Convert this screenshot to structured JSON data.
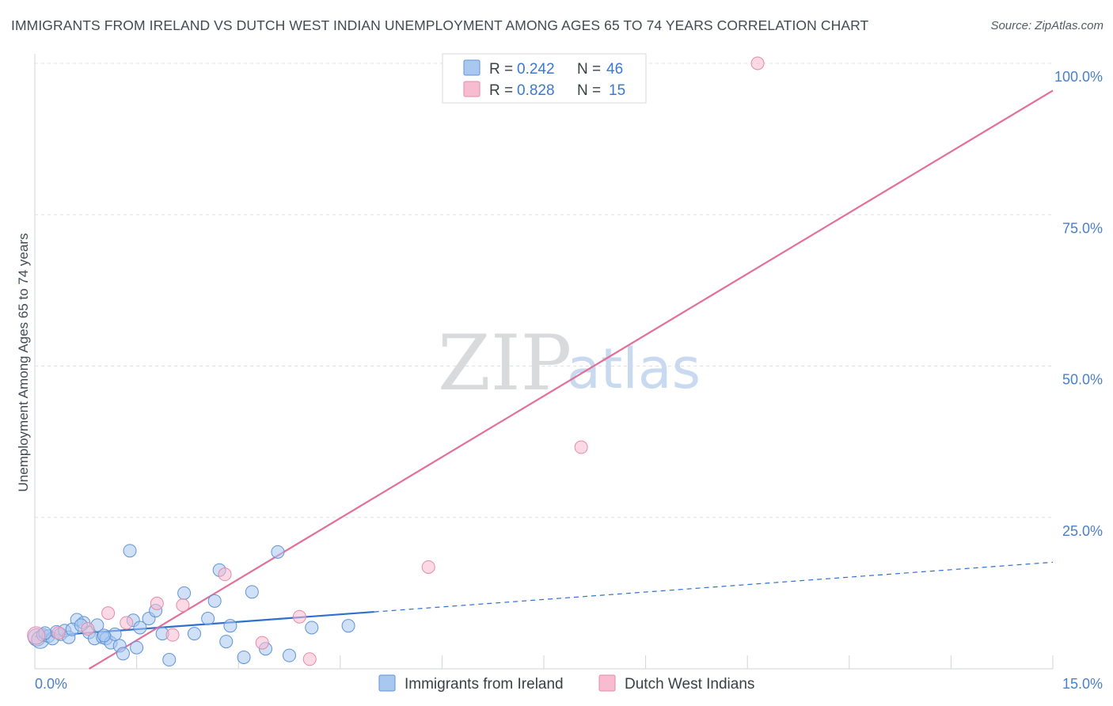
{
  "header": {
    "title": "IMMIGRANTS FROM IRELAND VS DUTCH WEST INDIAN UNEMPLOYMENT AMONG AGES 65 TO 74 YEARS CORRELATION CHART",
    "source": "Source: ZipAtlas.com"
  },
  "watermark": {
    "zip": "ZIP",
    "atlas": "atlas"
  },
  "legend": {
    "r_label": "R =",
    "n_label": "N =",
    "items": [
      {
        "r": "0.242",
        "n": "46",
        "color": "#a9c8f0",
        "stroke": "#5f93d6"
      },
      {
        "r": "0.828",
        "n": "15",
        "color": "#f7bcd0",
        "stroke": "#e48aa9"
      }
    ]
  },
  "bottom_legend": [
    {
      "label": "Immigrants from Ireland",
      "color": "#a9c8f0",
      "stroke": "#5f93d6"
    },
    {
      "label": "Dutch West Indians",
      "color": "#f7bcd0",
      "stroke": "#e48aa9"
    }
  ],
  "chart_data": {
    "type": "scatter",
    "title": "IMMIGRANTS FROM IRELAND VS DUTCH WEST INDIAN UNEMPLOYMENT AMONG AGES 65 TO 74 YEARS CORRELATION CHART",
    "xlabel": "",
    "ylabel": "Unemployment Among Ages 65 to 74 years",
    "xlim": [
      0,
      15
    ],
    "ylim": [
      0,
      100
    ],
    "x_tick_labels": [
      {
        "value": 0,
        "label": "0.0%"
      },
      {
        "value": 15,
        "label": "15.0%"
      }
    ],
    "y_tick_labels": [
      {
        "value": 25,
        "label": "25.0%"
      },
      {
        "value": 50,
        "label": "50.0%"
      },
      {
        "value": 75,
        "label": "75.0%"
      },
      {
        "value": 100,
        "label": "100.0%"
      }
    ],
    "series": [
      {
        "name": "Immigrants from Ireland",
        "color": "#a9c8f0",
        "stroke": "#5f93d6",
        "line_color": "#2f6fcf",
        "trend": {
          "x0": 0,
          "y0": 5.3,
          "x1": 15,
          "y1": 17.6,
          "solid_until_x": 5.0
        },
        "points": [
          [
            0.03,
            5.2
          ],
          [
            0.08,
            4.8
          ],
          [
            0.12,
            5.6
          ],
          [
            0.2,
            5.4
          ],
          [
            0.26,
            5.0
          ],
          [
            0.32,
            6.1
          ],
          [
            0.38,
            5.7
          ],
          [
            0.44,
            6.3
          ],
          [
            0.5,
            5.2
          ],
          [
            0.62,
            8.1
          ],
          [
            0.72,
            7.6
          ],
          [
            0.8,
            6.0
          ],
          [
            0.88,
            5.0
          ],
          [
            0.92,
            7.2
          ],
          [
            1.0,
            5.2
          ],
          [
            1.05,
            5.0
          ],
          [
            1.12,
            4.3
          ],
          [
            1.18,
            5.7
          ],
          [
            1.25,
            3.8
          ],
          [
            1.3,
            2.5
          ],
          [
            1.4,
            19.5
          ],
          [
            1.45,
            8.0
          ],
          [
            1.5,
            3.5
          ],
          [
            1.55,
            6.8
          ],
          [
            1.68,
            8.3
          ],
          [
            1.78,
            9.6
          ],
          [
            1.88,
            5.8
          ],
          [
            1.98,
            1.5
          ],
          [
            2.2,
            12.5
          ],
          [
            2.35,
            5.8
          ],
          [
            2.55,
            8.3
          ],
          [
            2.65,
            11.2
          ],
          [
            2.72,
            16.3
          ],
          [
            2.82,
            4.5
          ],
          [
            2.88,
            7.1
          ],
          [
            3.08,
            1.9
          ],
          [
            3.2,
            12.7
          ],
          [
            3.4,
            3.3
          ],
          [
            3.58,
            19.3
          ],
          [
            3.75,
            2.2
          ],
          [
            4.08,
            6.8
          ],
          [
            4.62,
            7.1
          ],
          [
            0.15,
            5.9
          ],
          [
            0.55,
            6.5
          ],
          [
            0.68,
            7.2
          ],
          [
            1.02,
            5.5
          ]
        ]
      },
      {
        "name": "Dutch West Indians",
        "color": "#f7bcd0",
        "stroke": "#e48aa9",
        "line_color": "#e0709a",
        "trend": {
          "x0": 0.8,
          "y0": 0,
          "x1": 15,
          "y1": 95.5
        },
        "points": [
          [
            0.02,
            5.5
          ],
          [
            0.35,
            5.9
          ],
          [
            0.78,
            6.6
          ],
          [
            1.08,
            9.2
          ],
          [
            1.35,
            7.6
          ],
          [
            1.8,
            10.8
          ],
          [
            2.03,
            5.6
          ],
          [
            2.18,
            10.5
          ],
          [
            2.8,
            15.6
          ],
          [
            3.35,
            4.3
          ],
          [
            3.9,
            8.6
          ],
          [
            4.05,
            1.6
          ],
          [
            5.8,
            16.8
          ],
          [
            8.05,
            36.6
          ],
          [
            10.65,
            100.0
          ]
        ]
      }
    ]
  }
}
